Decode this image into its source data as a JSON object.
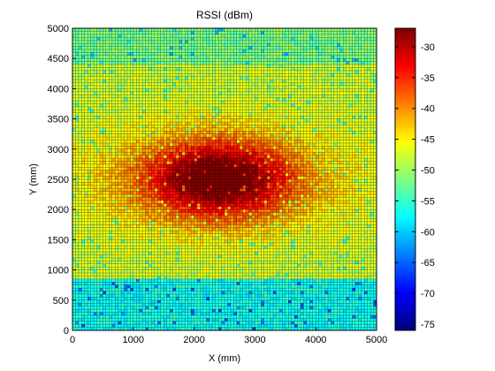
{
  "chart_data": {
    "type": "heatmap",
    "title": "RSSI (dBm)",
    "xlabel": "X (mm)",
    "ylabel": "Y (mm)",
    "xlim": [
      0,
      5000
    ],
    "ylim": [
      0,
      5000
    ],
    "x_ticks": [
      "0",
      "1000",
      "2000",
      "3000",
      "4000",
      "5000"
    ],
    "y_ticks": [
      "0",
      "500",
      "1000",
      "1500",
      "2000",
      "2500",
      "3000",
      "3500",
      "4000",
      "4500",
      "5000"
    ],
    "colorbar": {
      "min": -76,
      "max": -27,
      "ticks": [
        "-30",
        "-35",
        "-40",
        "-45",
        "-50",
        "-55",
        "-60",
        "-65",
        "-70",
        "-75"
      ],
      "colormap": "jet"
    },
    "grid_lines": true,
    "cell_edge_color": "#000000",
    "grid_cells": [
      100,
      100
    ],
    "field_model": {
      "peak_x": 2400,
      "peak_y": 2500,
      "peak_value": -28,
      "background_value": -48,
      "low_region_y_max": 850,
      "low_region_value": -57
    }
  }
}
